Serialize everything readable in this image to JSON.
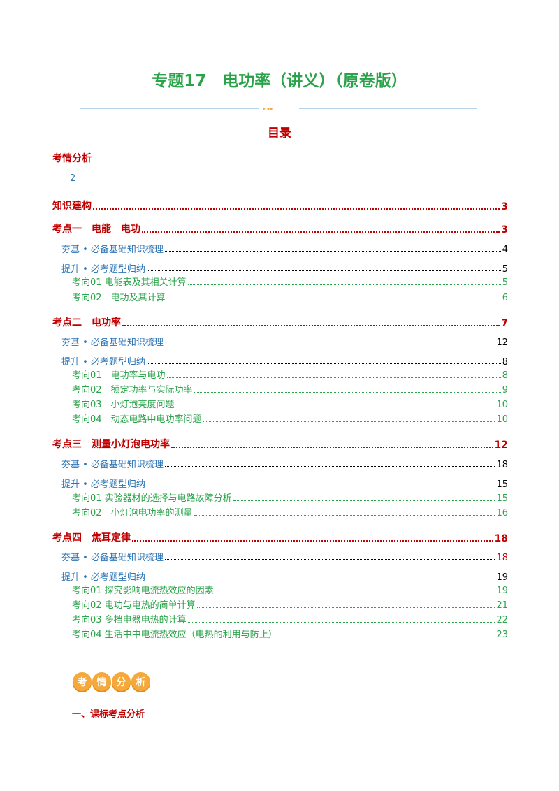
{
  "header": {
    "title": "专题17　电功率（讲义）（原卷版）"
  },
  "toc": {
    "heading": "目录",
    "first": {
      "text": "考情分析",
      "page": "2"
    },
    "entries": [
      {
        "text": "知识建构",
        "page": "3"
      },
      {
        "text": "考点一　电能　电功",
        "page": "3"
      },
      {
        "text": "夯基 • 必备基础知识梳理",
        "page": "4"
      },
      {
        "text": "提升 • 必考题型归纳",
        "page": "5"
      },
      {
        "text": "考向01  电能表及其相关计算",
        "page": "5"
      },
      {
        "text": "考向02　电功及其计算",
        "page": "6"
      },
      {
        "text": "考点二　电功率",
        "page": "7"
      },
      {
        "text": "夯基 • 必备基础知识梳理",
        "page": "12"
      },
      {
        "text": "提升 • 必考题型归纳",
        "page": "8"
      },
      {
        "text": "考向01　电功率与电功",
        "page": "8"
      },
      {
        "text": "考向02　额定功率与实际功率",
        "page": "9"
      },
      {
        "text": "考向03　小灯泡亮度问题",
        "page": "10"
      },
      {
        "text": "考向04　动态电路中电功率问题",
        "page": "10"
      },
      {
        "text": "考点三　测量小灯泡电功率",
        "page": "12"
      },
      {
        "text": "夯基 • 必备基础知识梳理",
        "page": "18"
      },
      {
        "text": "提升 • 必考题型归纳",
        "page": "15"
      },
      {
        "text": "考向01  实验器材的选择与电路故障分析",
        "page": "15"
      },
      {
        "text": "考向02　小灯泡电功率的测量",
        "page": "16"
      },
      {
        "text": "考点四　焦耳定律",
        "page": "18"
      },
      {
        "text": "夯基 • 必备基础知识梳理",
        "page": "18"
      },
      {
        "text": "提升 • 必考题型归纳",
        "page": "19"
      },
      {
        "text": "考向01  探究影响电流热效应的因素",
        "page": "19"
      },
      {
        "text": "考向02  电功与电热的简单计算",
        "page": "21"
      },
      {
        "text": "考向03  多挡电器电热的计算",
        "page": "22"
      },
      {
        "text": "考向04  生活中中电流热效应（电热的利用与防止）",
        "page": "23"
      }
    ]
  },
  "section": {
    "badge": [
      "考",
      "情",
      "分",
      "析"
    ],
    "heading": "一、课标考点分析"
  }
}
